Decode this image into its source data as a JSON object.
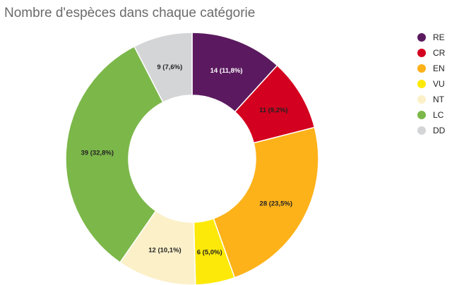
{
  "chart_data": {
    "type": "pie",
    "variant": "donut",
    "title": "Nombre d'espèces dans chaque catégorie",
    "categories": [
      "RE",
      "CR",
      "EN",
      "VU",
      "NT",
      "LC",
      "DD"
    ],
    "values": [
      14,
      11,
      28,
      6,
      12,
      39,
      9
    ],
    "data_labels": [
      "14 (11,8%)",
      "11 (9,2%)",
      "28 (23,5%)",
      "6 (5,0%)",
      "12 (10,1%)",
      "39 (32,8%)",
      "9 (7,6%)"
    ],
    "colors": [
      "#5b1a5f",
      "#d3001f",
      "#fdb21a",
      "#fde909",
      "#fbf0c8",
      "#7cb74a",
      "#d4d5d6"
    ],
    "label_colors": [
      "#ffffff",
      "#222222",
      "#222222",
      "#222222",
      "#222222",
      "#222222",
      "#222222"
    ],
    "legend_position": "right"
  }
}
